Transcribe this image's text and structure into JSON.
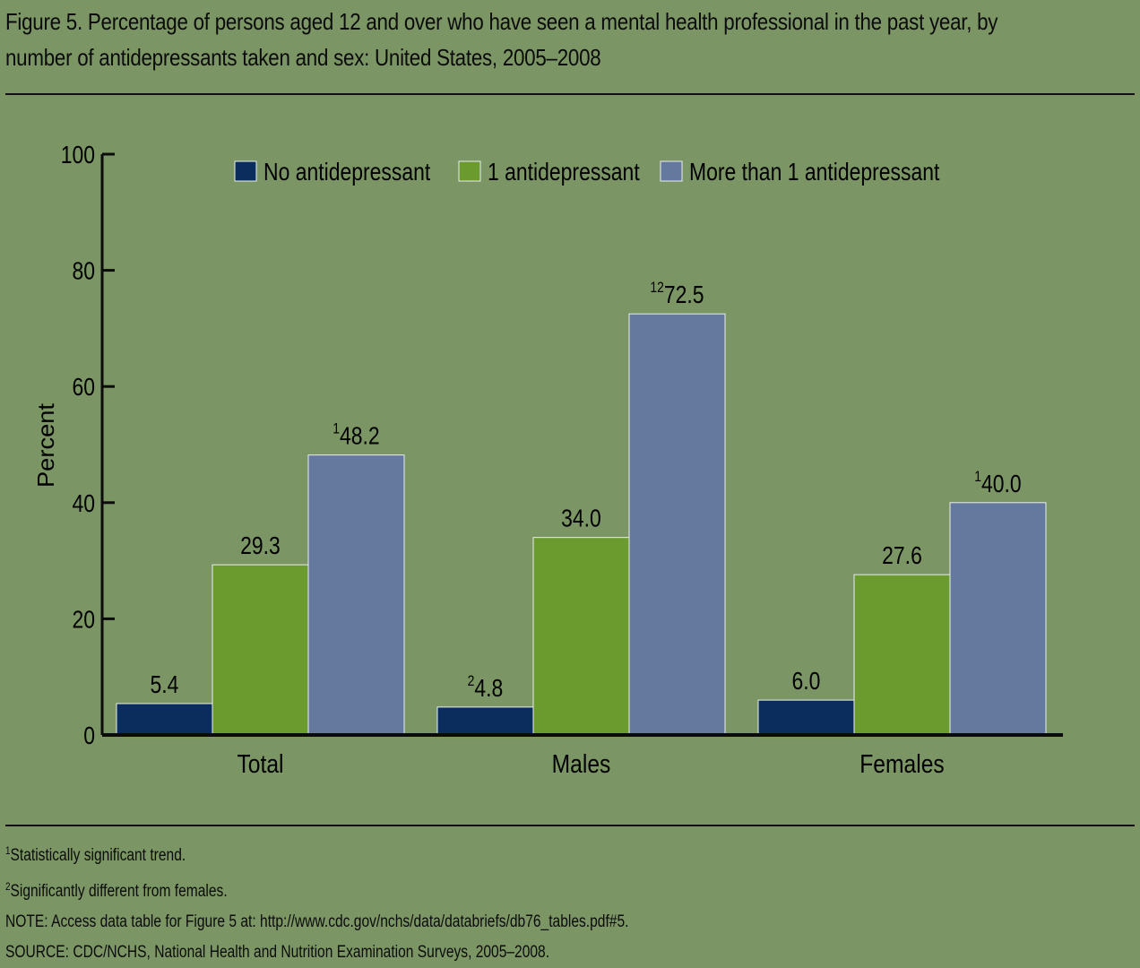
{
  "title": {
    "line1": "Figure 5. Percentage of persons aged 12 and over who have seen a mental health professional in the past year, by",
    "line2": "number of antidepressants taken and sex: United States, 2005–2008"
  },
  "notes": [
    {
      "sup": "1",
      "text": "Statistically significant trend."
    },
    {
      "sup": "2",
      "text": "Significantly different from females."
    },
    {
      "sup": "",
      "text": "NOTE: Access data table for Figure 5 at: http://www.cdc.gov/nchs/data/databriefs/db76_tables.pdf#5."
    },
    {
      "sup": "",
      "text": "SOURCE: CDC/NCHS, National Health and Nutrition Examination Surveys, 2005–2008."
    }
  ],
  "chart_data": {
    "type": "bar",
    "title": "",
    "xlabel": "",
    "ylabel": "Percent",
    "ylim": [
      0,
      100
    ],
    "yticks": [
      0,
      20,
      40,
      60,
      80,
      100
    ],
    "categories": [
      "Total",
      "Males",
      "Females"
    ],
    "legend_position": "top",
    "series": [
      {
        "name": "No antidepressant",
        "color": "#0b2d5e",
        "values": [
          5.4,
          4.8,
          6.0
        ],
        "labels": [
          "5.4",
          "4.8",
          "6.0"
        ],
        "sups": [
          "",
          "2",
          ""
        ]
      },
      {
        "name": "1 antidepressant",
        "color": "#6b9a2e",
        "values": [
          29.3,
          34.0,
          27.6
        ],
        "labels": [
          "29.3",
          "34.0",
          "27.6"
        ],
        "sups": [
          "",
          "",
          ""
        ]
      },
      {
        "name": "More than 1 antidepressant",
        "color": "#65799f",
        "values": [
          48.2,
          72.5,
          40.0
        ],
        "labels": [
          "48.2",
          "72.5",
          "40.0"
        ],
        "sups": [
          "1",
          "12",
          "1"
        ]
      }
    ]
  }
}
